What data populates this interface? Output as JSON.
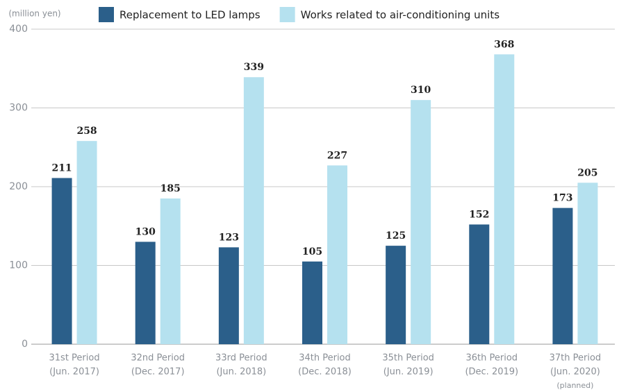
{
  "chart_data": {
    "type": "bar",
    "y_label": "(million yen)",
    "categories": [
      [
        "31st Period",
        "(Jun. 2017)"
      ],
      [
        "32nd Period",
        "(Dec. 2017)"
      ],
      [
        "33rd Period",
        "(Jun. 2018)"
      ],
      [
        "34th Period",
        "(Dec. 2018)"
      ],
      [
        "35th Period",
        "(Jun. 2019)"
      ],
      [
        "36th Period",
        "(Dec. 2019)"
      ],
      [
        "37th Period",
        "(Jun. 2020)",
        "(planned)"
      ]
    ],
    "series": [
      {
        "name": "Replacement to LED lamps",
        "color": "#2b5f8a",
        "values": [
          211,
          130,
          123,
          105,
          125,
          152,
          173
        ]
      },
      {
        "name": "Works related to air-conditioning units",
        "color": "#b5e1ef",
        "values": [
          258,
          185,
          339,
          227,
          310,
          368,
          205
        ]
      }
    ],
    "ylim": [
      0,
      400
    ],
    "yticks": [
      0,
      100,
      200,
      300,
      400
    ],
    "grid": true,
    "legend": "top"
  }
}
